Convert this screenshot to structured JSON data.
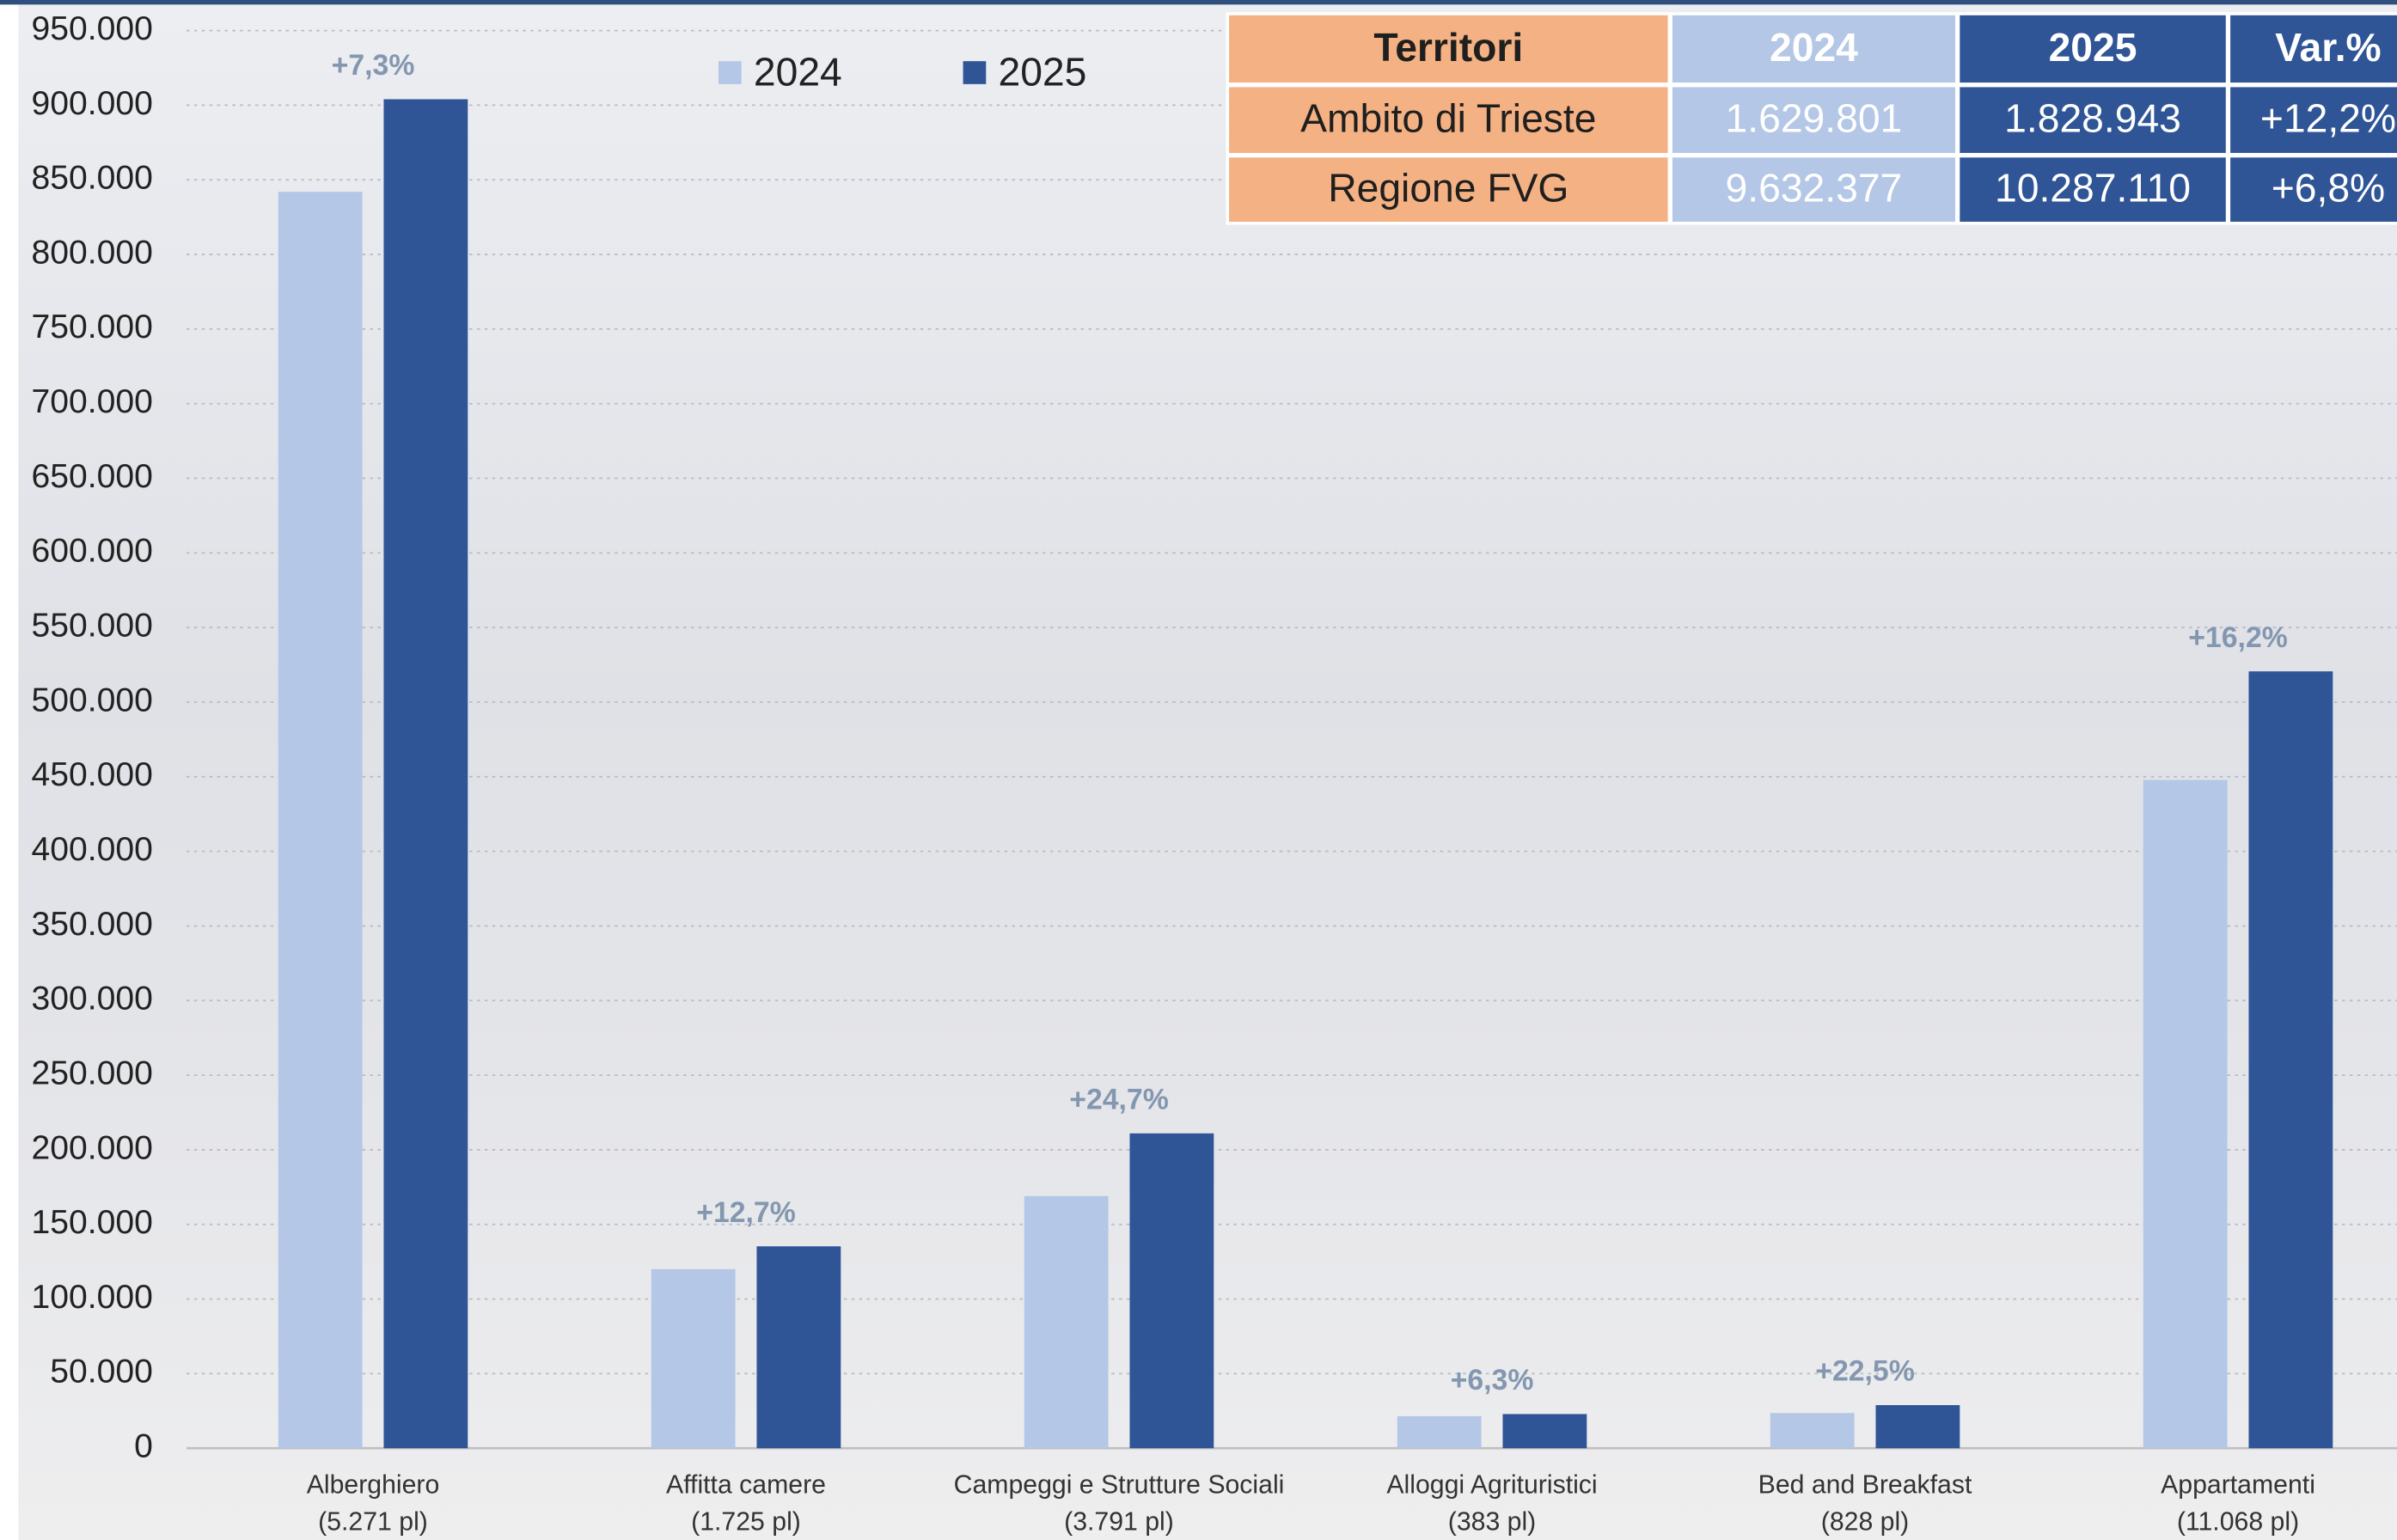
{
  "chart_data": {
    "type": "bar",
    "categories": [
      "Alberghiero",
      "Affitta camere",
      "Campeggi e Strutture Sociali",
      "Alloggi Agrituristici",
      "Bed and Breakfast",
      "Appartamenti"
    ],
    "category_notes": [
      "(5.271 pl)",
      "(1.725 pl)",
      "(3.791 pl)",
      "(383 pl)",
      "(828 pl)",
      "(11.068 pl)"
    ],
    "annotations": [
      "+7,3%",
      "+12,7%",
      "+24,7%",
      "+6,3%",
      "+22,5%",
      "+16,2%"
    ],
    "series": [
      {
        "name": "2024",
        "color": "#b4c7e7",
        "values": [
          842000,
          120000,
          169000,
          21500,
          23600,
          447800
        ]
      },
      {
        "name": "2025",
        "color": "#2f5597",
        "values": [
          904000,
          135300,
          211000,
          22900,
          28900,
          520600
        ]
      }
    ],
    "ylim": [
      0,
      950000
    ],
    "yticks": [
      0,
      {
        "value": 50000,
        "label": "50.000"
      },
      {
        "value": 100000,
        "label": "100.000"
      },
      {
        "value": 150000,
        "label": "150.000"
      },
      {
        "value": 200000,
        "label": "200.000"
      },
      {
        "value": 250000,
        "label": "250.000"
      },
      {
        "value": 300000,
        "label": "300.000"
      },
      {
        "value": 350000,
        "label": "350.000"
      },
      {
        "value": 400000,
        "label": "400.000"
      },
      {
        "value": 450000,
        "label": "450.000"
      },
      {
        "value": 500000,
        "label": "500.000"
      },
      {
        "value": 550000,
        "label": "550.000"
      },
      {
        "value": 600000,
        "label": "600.000"
      },
      {
        "value": 650000,
        "label": "650.000"
      },
      {
        "value": 700000,
        "label": "700.000"
      },
      {
        "value": 750000,
        "label": "750.000"
      },
      {
        "value": 800000,
        "label": "800.000"
      },
      {
        "value": 850000,
        "label": "850.000"
      },
      {
        "value": 900000,
        "label": "900.000"
      },
      {
        "value": 950000,
        "label": "950.000"
      }
    ],
    "grid": true
  },
  "table": {
    "header": [
      "Territori",
      "2024",
      "2025",
      "Var.%"
    ],
    "rows": [
      [
        "Ambito di Trieste",
        "1.629.801",
        "1.828.943",
        "+12,2%"
      ],
      [
        "Regione FVG",
        "9.632.377",
        "10.287.110",
        "+6,8%"
      ]
    ]
  }
}
